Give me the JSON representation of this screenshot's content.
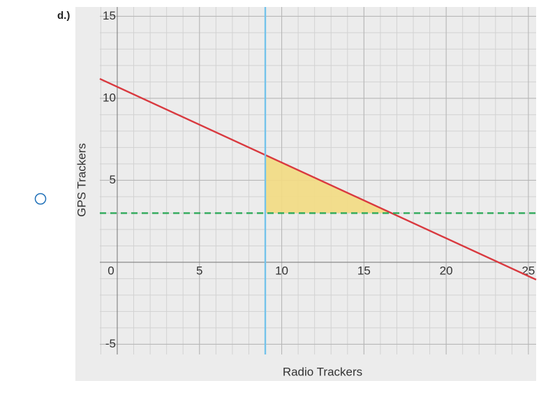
{
  "option_label": "d.)",
  "chart_data": {
    "type": "line",
    "xlabel": "Radio Trackers",
    "ylabel": "GPS Trackers",
    "xlim": [
      -1.06,
      25.47
    ],
    "ylim": [
      -5.62,
      15.57
    ],
    "xticks": [
      0,
      5,
      10,
      15,
      20,
      25
    ],
    "yticks": [
      -5,
      5,
      10,
      15
    ],
    "grid": true,
    "minor_grid_step": 1,
    "fill_region": {
      "color": "#f3dc82",
      "x": [
        9,
        9,
        16.67
      ],
      "y": [
        3,
        6.54,
        3
      ]
    },
    "series": [
      {
        "color": "#d9393f",
        "x": [
          -1.06,
          25.47
        ],
        "y": [
          11.19,
          -1.06
        ]
      },
      {
        "color": "#74c3ea",
        "x": [
          9,
          9
        ],
        "y": [
          -5.62,
          15.57
        ]
      },
      {
        "color": "#2eaa5a",
        "dashed": true,
        "x": [
          -1.06,
          25.47
        ],
        "y": [
          3,
          3
        ]
      }
    ]
  }
}
